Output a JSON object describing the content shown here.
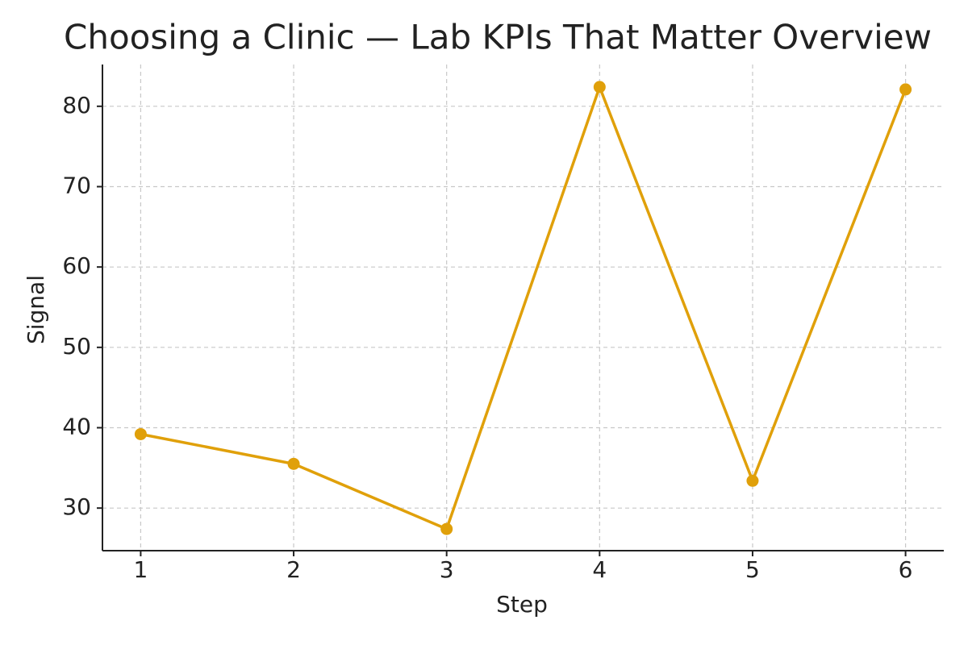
{
  "chart_data": {
    "type": "line",
    "title": "Choosing a Clinic — Lab KPIs That Matter Overview",
    "x_label": "Step",
    "y_label": "Signal",
    "x": [
      1,
      2,
      3,
      4,
      5,
      6
    ],
    "series": [
      {
        "name": "Signal",
        "color": "#e0a00a",
        "values": [
          39.2,
          35.5,
          27.4,
          82.4,
          33.4,
          82.1
        ]
      }
    ],
    "xlim": [
      0.75,
      6.25
    ],
    "xticks": [
      1,
      2,
      3,
      4,
      5,
      6
    ],
    "ylim": [
      24.7,
      85.2
    ],
    "yticks": [
      30,
      40,
      50,
      60,
      70,
      80
    ],
    "grid": true
  }
}
